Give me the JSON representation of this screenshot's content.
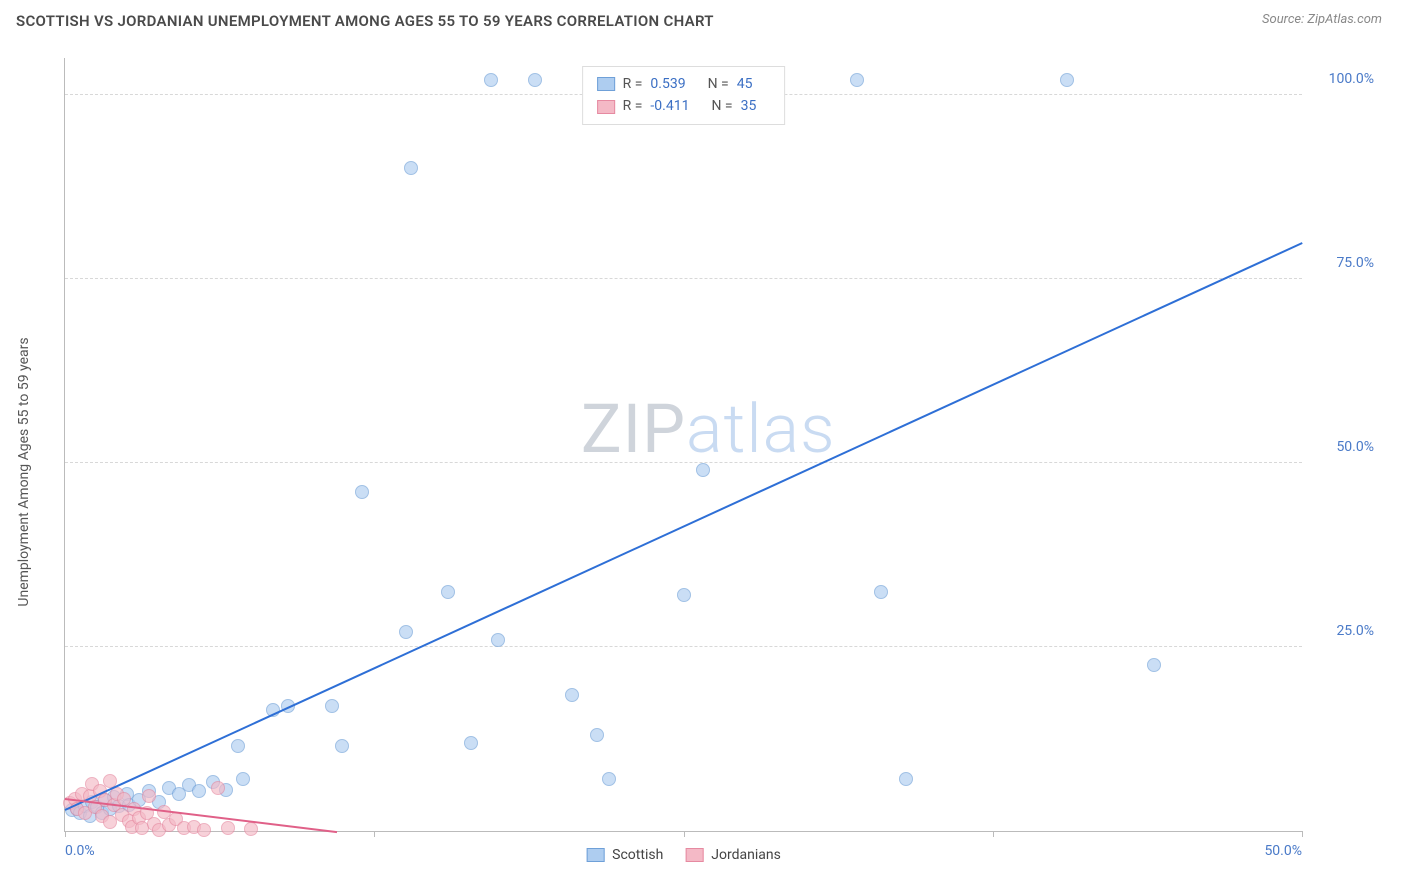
{
  "header": {
    "title": "SCOTTISH VS JORDANIAN UNEMPLOYMENT AMONG AGES 55 TO 59 YEARS CORRELATION CHART",
    "source": "Source: ZipAtlas.com"
  },
  "chart": {
    "type": "scatter",
    "ylabel": "Unemployment Among Ages 55 to 59 years",
    "xlim": [
      0,
      50
    ],
    "ylim": [
      0,
      105
    ],
    "xtick_positions": [
      0,
      12.5,
      25,
      37.5,
      50
    ],
    "xtick_labels_show": {
      "0": "0.0%",
      "50": "50.0%"
    },
    "ytick_positions": [
      25,
      50,
      75,
      100
    ],
    "ytick_labels": {
      "25": "25.0%",
      "50": "50.0%",
      "75": "75.0%",
      "100": "100.0%"
    },
    "grid_color": "#d8d8d8",
    "axis_color": "#bbbbbb",
    "background_color": "#ffffff",
    "tick_label_color": "#4a7ac8",
    "series": [
      {
        "name": "Scottish",
        "marker_fill": "#aecdf0",
        "marker_stroke": "#6fa0d8",
        "marker_fill_opacity": 0.65,
        "marker_size": 14,
        "r_value": "0.539",
        "n_value": "45",
        "trend": {
          "x1": 0,
          "y1": 3,
          "x2": 50,
          "y2": 80,
          "color": "#2e6fd6",
          "width": 2
        },
        "points": [
          [
            0.3,
            2.8
          ],
          [
            0.5,
            3.0
          ],
          [
            0.6,
            2.5
          ],
          [
            0.8,
            3.4
          ],
          [
            1.0,
            2.0
          ],
          [
            1.1,
            4.0
          ],
          [
            1.3,
            3.2
          ],
          [
            1.5,
            2.4
          ],
          [
            1.6,
            4.2
          ],
          [
            1.8,
            3.0
          ],
          [
            2.0,
            4.6
          ],
          [
            2.2,
            3.4
          ],
          [
            2.5,
            5.0
          ],
          [
            2.6,
            3.6
          ],
          [
            3.0,
            4.2
          ],
          [
            3.4,
            5.4
          ],
          [
            3.8,
            4.0
          ],
          [
            4.2,
            5.8
          ],
          [
            4.6,
            5.0
          ],
          [
            5.0,
            6.2
          ],
          [
            5.4,
            5.4
          ],
          [
            6.0,
            6.6
          ],
          [
            6.5,
            5.6
          ],
          [
            7.0,
            11.5
          ],
          [
            7.2,
            7.0
          ],
          [
            8.4,
            16.5
          ],
          [
            9.0,
            17.0
          ],
          [
            10.8,
            17.0
          ],
          [
            11.2,
            11.5
          ],
          [
            12.0,
            46.0
          ],
          [
            13.8,
            27.0
          ],
          [
            14.0,
            90.0
          ],
          [
            15.5,
            32.5
          ],
          [
            16.4,
            12.0
          ],
          [
            17.2,
            102.0
          ],
          [
            17.5,
            26.0
          ],
          [
            19.0,
            102.0
          ],
          [
            20.5,
            18.5
          ],
          [
            21.5,
            13.0
          ],
          [
            22.0,
            7.0
          ],
          [
            25.0,
            32.0
          ],
          [
            25.8,
            49.0
          ],
          [
            32.0,
            102.0
          ],
          [
            33.0,
            32.5
          ],
          [
            34.0,
            7.0
          ],
          [
            40.5,
            102.0
          ],
          [
            44.0,
            22.5
          ]
        ]
      },
      {
        "name": "Jordanians",
        "marker_fill": "#f4b9c6",
        "marker_stroke": "#e68aa1",
        "marker_fill_opacity": 0.65,
        "marker_size": 14,
        "r_value": "-0.411",
        "n_value": "35",
        "trend": {
          "x1": 0,
          "y1": 4.5,
          "x2": 11,
          "y2": 0,
          "color": "#e06088",
          "width": 2
        },
        "points": [
          [
            0.2,
            3.8
          ],
          [
            0.4,
            4.4
          ],
          [
            0.5,
            3.0
          ],
          [
            0.7,
            5.0
          ],
          [
            0.8,
            2.4
          ],
          [
            1.0,
            4.8
          ],
          [
            1.1,
            6.4
          ],
          [
            1.2,
            3.2
          ],
          [
            1.4,
            5.4
          ],
          [
            1.5,
            2.0
          ],
          [
            1.6,
            4.2
          ],
          [
            1.8,
            6.8
          ],
          [
            1.8,
            1.2
          ],
          [
            2.0,
            3.6
          ],
          [
            2.1,
            5.0
          ],
          [
            2.3,
            2.2
          ],
          [
            2.4,
            4.4
          ],
          [
            2.6,
            1.4
          ],
          [
            2.7,
            0.6
          ],
          [
            2.8,
            3.0
          ],
          [
            3.0,
            1.8
          ],
          [
            3.1,
            0.4
          ],
          [
            3.3,
            2.4
          ],
          [
            3.4,
            4.8
          ],
          [
            3.6,
            1.0
          ],
          [
            3.8,
            0.2
          ],
          [
            4.0,
            2.6
          ],
          [
            4.2,
            0.8
          ],
          [
            4.5,
            1.6
          ],
          [
            4.8,
            0.4
          ],
          [
            5.2,
            0.6
          ],
          [
            5.6,
            0.2
          ],
          [
            6.2,
            5.8
          ],
          [
            6.6,
            0.4
          ],
          [
            7.5,
            0.3
          ]
        ]
      }
    ],
    "legend_top": {
      "r_label": "R =",
      "n_label": "N ="
    },
    "legend_bottom": [
      {
        "label": "Scottish",
        "fill": "#aecdf0",
        "stroke": "#6fa0d8"
      },
      {
        "label": "Jordanians",
        "fill": "#f4b9c6",
        "stroke": "#e68aa1"
      }
    ],
    "watermark": {
      "zip": "ZIP",
      "atlas": "atlas"
    }
  }
}
